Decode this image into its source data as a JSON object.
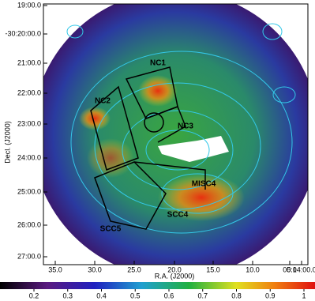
{
  "x_axis": {
    "label": "R.A. (J2000)",
    "ticks": [
      "35.0",
      "30.0",
      "25.0",
      "20.0",
      "15.0",
      "10.0",
      "05.0",
      "0:14:00.0"
    ]
  },
  "y_axis": {
    "label": "Decl. (J2000)",
    "ticks": [
      "19:00.0",
      "-30:20:00.0",
      "21:00.0",
      "22:00.0",
      "23:00.0",
      "24:00.0",
      "25:00.0",
      "26:00.0",
      "27:00.0"
    ]
  },
  "regions": [
    "NC1",
    "NC2",
    "NC3",
    "MISC4",
    "SCC4",
    "SCC5"
  ],
  "colorbar": {
    "ticks": [
      0.2,
      0.3,
      0.4,
      0.5,
      0.6,
      0.7,
      0.8,
      0.9,
      1
    ]
  }
}
